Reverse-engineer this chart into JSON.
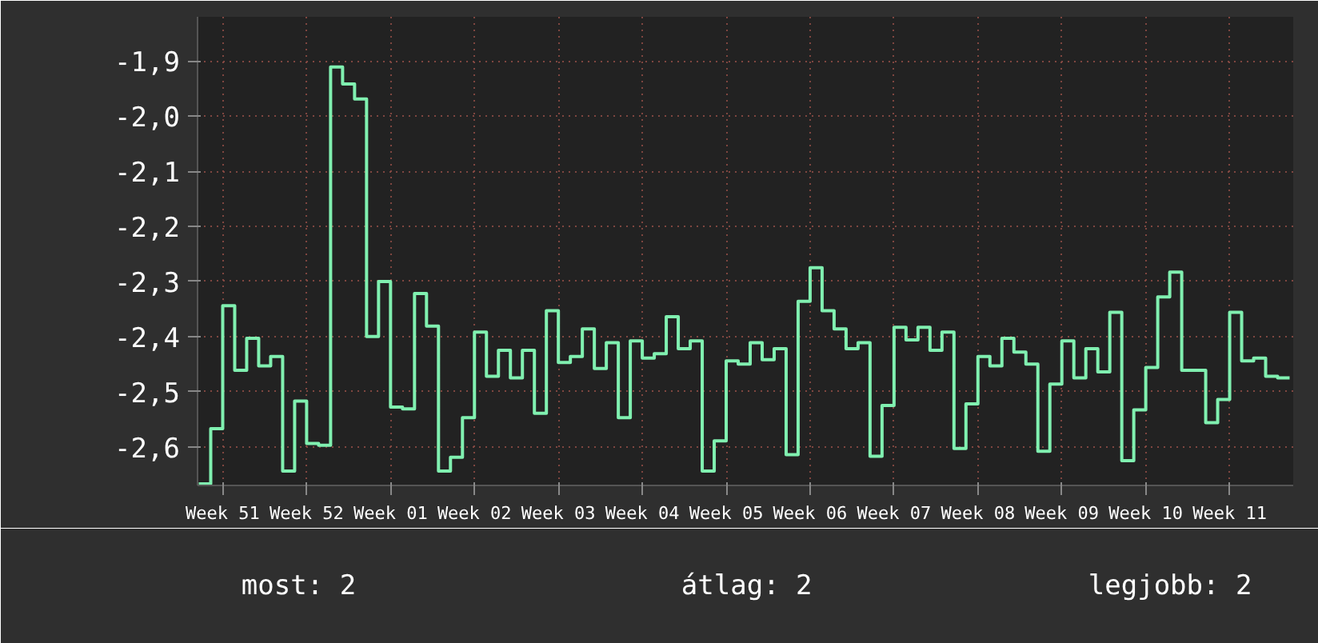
{
  "chart_data": {
    "type": "step",
    "categories": [
      null,
      null,
      "Week 51",
      null,
      null,
      null,
      null,
      null,
      null,
      "Week 52",
      null,
      null,
      null,
      null,
      null,
      null,
      "Week 01",
      null,
      null,
      null,
      null,
      null,
      null,
      "Week 02",
      null,
      null,
      null,
      null,
      null,
      null,
      "Week 03",
      null,
      null,
      null,
      null,
      null,
      null,
      "Week 04",
      null,
      null,
      null,
      null,
      null,
      null,
      "Week 05",
      null,
      null,
      null,
      null,
      null,
      null,
      "Week 06",
      null,
      null,
      null,
      null,
      null,
      null,
      "Week 07",
      null,
      null,
      null,
      null,
      null,
      null,
      "Week 08",
      null,
      null,
      null,
      null,
      null,
      null,
      "Week 09",
      null,
      null,
      null,
      null,
      null,
      null,
      "Week 10",
      null,
      null,
      null,
      null,
      null,
      null,
      "Week 11",
      null,
      null,
      null,
      null,
      null
    ],
    "series": [
      {
        "color": "#80f0b0",
        "values": [
          -2.667,
          -2.567,
          -2.344,
          -2.461,
          -2.403,
          -2.453,
          -2.436,
          -2.644,
          -2.517,
          -2.594,
          -2.597,
          -1.911,
          -1.942,
          -1.969,
          -2.4,
          -2.3,
          -2.528,
          -2.531,
          -2.322,
          -2.381,
          -2.644,
          -2.619,
          -2.547,
          -2.392,
          -2.472,
          -2.425,
          -2.475,
          -2.425,
          -2.539,
          -2.353,
          -2.447,
          -2.436,
          -2.386,
          -2.458,
          -2.411,
          -2.547,
          -2.408,
          -2.439,
          -2.431,
          -2.364,
          -2.422,
          -2.408,
          -2.644,
          -2.589,
          -2.444,
          -2.45,
          -2.411,
          -2.442,
          -2.422,
          -2.614,
          -2.336,
          -2.275,
          -2.353,
          -2.386,
          -2.422,
          -2.411,
          -2.617,
          -2.525,
          -2.383,
          -2.406,
          -2.383,
          -2.425,
          -2.392,
          -2.603,
          -2.522,
          -2.436,
          -2.453,
          -2.403,
          -2.428,
          -2.45,
          -2.608,
          -2.486,
          -2.408,
          -2.475,
          -2.422,
          -2.464,
          -2.356,
          -2.625,
          -2.533,
          -2.456,
          -2.328,
          -2.283,
          -2.461,
          -2.461,
          -2.556,
          -2.514,
          -2.356,
          -2.444,
          -2.439,
          -2.472,
          -2.475,
          -2.475
        ]
      }
    ],
    "ylim": [
      -2.67,
      -1.82
    ],
    "yticks": [
      {
        "value": -2.6,
        "label": "-2,6"
      },
      {
        "value": -2.5,
        "label": "-2,5"
      },
      {
        "value": -2.4,
        "label": "-2,4"
      },
      {
        "value": -2.3,
        "label": "-2,3"
      },
      {
        "value": -2.2,
        "label": "-2,2"
      },
      {
        "value": -2.1,
        "label": "-2,1"
      },
      {
        "value": -2.0,
        "label": "-2,0"
      },
      {
        "value": -1.9,
        "label": "-1,9"
      }
    ],
    "grid": true,
    "annotations": [
      "most: 2",
      "átlag: 2",
      "legjobb: 2"
    ]
  }
}
